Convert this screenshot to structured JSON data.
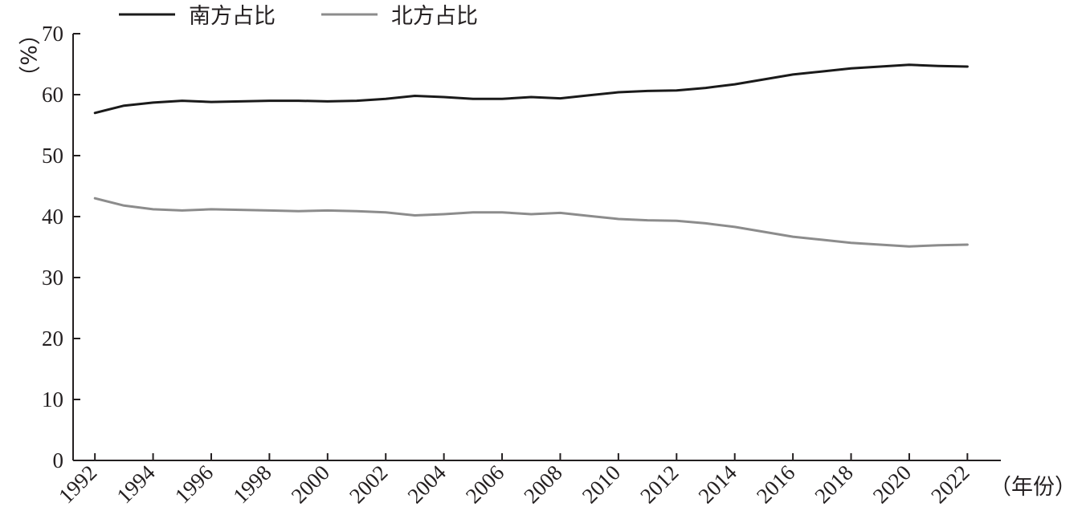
{
  "chart_data": {
    "type": "line",
    "x": [
      1992,
      1993,
      1994,
      1995,
      1996,
      1997,
      1998,
      1999,
      2000,
      2001,
      2002,
      2003,
      2004,
      2005,
      2006,
      2007,
      2008,
      2009,
      2010,
      2011,
      2012,
      2013,
      2014,
      2015,
      2016,
      2017,
      2018,
      2019,
      2020,
      2021,
      2022
    ],
    "series": [
      {
        "name": "南方占比",
        "color": "#1a1a1a",
        "values": [
          57.0,
          58.2,
          58.7,
          59.0,
          58.8,
          58.9,
          59.0,
          59.0,
          58.9,
          59.0,
          59.3,
          59.8,
          59.6,
          59.3,
          59.3,
          59.6,
          59.4,
          59.9,
          60.4,
          60.6,
          60.7,
          61.1,
          61.7,
          62.5,
          63.3,
          63.8,
          64.3,
          64.6,
          64.9,
          64.7,
          64.6
        ]
      },
      {
        "name": "北方占比",
        "color": "#8c8c8c",
        "values": [
          43.0,
          41.8,
          41.2,
          41.0,
          41.2,
          41.1,
          41.0,
          40.9,
          41.0,
          40.9,
          40.7,
          40.2,
          40.4,
          40.7,
          40.7,
          40.4,
          40.6,
          40.1,
          39.6,
          39.4,
          39.3,
          38.9,
          38.3,
          37.5,
          36.7,
          36.2,
          35.7,
          35.4,
          35.1,
          35.3,
          35.4
        ]
      }
    ],
    "xticks": [
      "1992",
      "1994",
      "1996",
      "1998",
      "2000",
      "2002",
      "2004",
      "2006",
      "2008",
      "2010",
      "2012",
      "2014",
      "2016",
      "2018",
      "2020",
      "2022"
    ],
    "yticks": [
      "0",
      "10",
      "20",
      "30",
      "40",
      "50",
      "60",
      "70"
    ],
    "ylim": [
      0,
      70
    ],
    "xlim": [
      1991.25,
      2023.15
    ],
    "ylabel": "（%）",
    "xlabel": "（年份）",
    "legend_position": "top-left",
    "grid": false
  }
}
